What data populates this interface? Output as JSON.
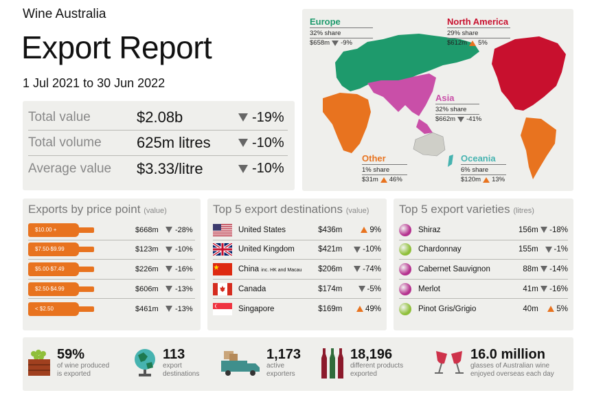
{
  "brand": "Wine Australia",
  "title": "Export Report",
  "date_range": "1 Jul 2021 to 30 Jun 2022",
  "totals": [
    {
      "label": "Total value",
      "value": "$2.08b",
      "change": "-19%",
      "direction": "down"
    },
    {
      "label": "Total volume",
      "value": "625m litres",
      "change": "-10%",
      "direction": "down"
    },
    {
      "label": "Average value",
      "value": "$3.33/litre",
      "change": "-10%",
      "direction": "down"
    }
  ],
  "map": {
    "regions": [
      {
        "name": "Europe",
        "share": "32% share",
        "value": "$658m",
        "change": "-9%",
        "direction": "down",
        "color": "#1e9a6c"
      },
      {
        "name": "North America",
        "share": "29% share",
        "value": "$612m",
        "change": "5%",
        "direction": "up",
        "color": "#c8102e"
      },
      {
        "name": "Asia",
        "share": "32% share",
        "value": "$662m",
        "change": "-41%",
        "direction": "down",
        "color": "#c94fa8"
      },
      {
        "name": "Other",
        "share": "1% share",
        "value": "$31m",
        "change": "46%",
        "direction": "up",
        "color": "#e8731f"
      },
      {
        "name": "Oceania",
        "share": "6% share",
        "value": "$120m",
        "change": "13%",
        "direction": "up",
        "color": "#46b3b0"
      }
    ]
  },
  "price_points": {
    "heading": "Exports by price point",
    "sub": "(value)",
    "rows": [
      {
        "label": "$10.00 +",
        "value": "$668m",
        "change": "-28%"
      },
      {
        "label": "$7.50-$9.99",
        "value": "$123m",
        "change": "-10%"
      },
      {
        "label": "$5.00-$7.49",
        "value": "$226m",
        "change": "-16%"
      },
      {
        "label": "$2.50-$4.99",
        "value": "$606m",
        "change": "-13%"
      },
      {
        "label": "< $2.50",
        "value": "$461m",
        "change": "-13%"
      }
    ]
  },
  "destinations": {
    "heading": "Top 5 export destinations",
    "sub": "(value)",
    "rows": [
      {
        "name": "United States",
        "note": "",
        "value": "$436m",
        "change": "9%",
        "direction": "up",
        "flag": "us"
      },
      {
        "name": "United Kingdom",
        "note": "",
        "value": "$421m",
        "change": "-10%",
        "direction": "down",
        "flag": "uk"
      },
      {
        "name": "China",
        "note": "inc. HK and Macau",
        "value": "$206m",
        "change": "-74%",
        "direction": "down",
        "flag": "cn"
      },
      {
        "name": "Canada",
        "note": "",
        "value": "$174m",
        "change": "-5%",
        "direction": "down",
        "flag": "ca"
      },
      {
        "name": "Singapore",
        "note": "",
        "value": "$169m",
        "change": "49%",
        "direction": "up",
        "flag": "sg"
      }
    ]
  },
  "varieties": {
    "heading": "Top 5 export varieties",
    "sub": "(litres)",
    "rows": [
      {
        "name": "Shiraz",
        "value": "156m",
        "change": "-18%",
        "direction": "down",
        "color": "#b5328f"
      },
      {
        "name": "Chardonnay",
        "value": "155m",
        "change": "-1%",
        "direction": "down",
        "color": "#8fbf3a"
      },
      {
        "name": "Cabernet Sauvignon",
        "value": "88m",
        "change": "-14%",
        "direction": "down",
        "color": "#b5328f"
      },
      {
        "name": "Merlot",
        "value": "41m",
        "change": "-16%",
        "direction": "down",
        "color": "#b5328f"
      },
      {
        "name": "Pinot Gris/Grigio",
        "value": "40m",
        "change": "5%",
        "direction": "up",
        "color": "#8fbf3a"
      }
    ]
  },
  "footer_stats": [
    {
      "number": "59%",
      "label1": "of wine produced",
      "label2": "is exported",
      "icon": "grape-crate-icon"
    },
    {
      "number": "113",
      "label1": "export",
      "label2": "destinations",
      "icon": "globe-icon"
    },
    {
      "number": "1,173",
      "label1": "active",
      "label2": "exporters",
      "icon": "truck-icon"
    },
    {
      "number": "18,196",
      "label1": "different products",
      "label2": "exported",
      "icon": "wine-bottles-icon"
    },
    {
      "number": "16.0 million",
      "label1": "glasses of Australian wine",
      "label2": "enjoyed overseas each day",
      "icon": "wine-glasses-icon"
    }
  ]
}
